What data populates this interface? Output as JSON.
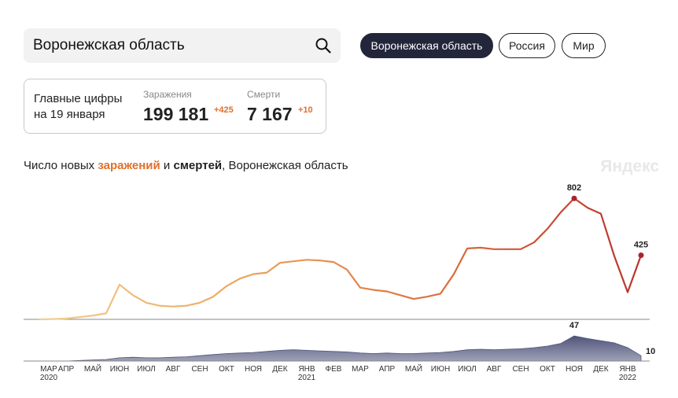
{
  "search": {
    "query": "Воронежская область"
  },
  "tabs": [
    "Воронежская область",
    "Россия",
    "Мир"
  ],
  "summary": {
    "heading": [
      "Главные цифры",
      "на 19 января"
    ],
    "cases": {
      "label": "Заражения",
      "total": "199 181",
      "delta": "+425"
    },
    "deaths": {
      "label": "Смерти",
      "total": "7 167",
      "delta": "+10"
    }
  },
  "chart_title": [
    "Число новых",
    "заражений",
    "и",
    "смертей",
    ", Воронежская область"
  ],
  "watermark": "Яндекс",
  "chart_data": [
    {
      "type": "line",
      "name": "заражения",
      "categories": [
        "МАР",
        null,
        "АПР",
        null,
        "МАЙ",
        null,
        "ИЮН",
        null,
        "ИЮЛ",
        null,
        "АВГ",
        null,
        "СЕН",
        null,
        "ОКТ",
        null,
        "НОЯ",
        null,
        "ДЕК",
        null,
        "ЯНВ",
        null,
        "ФЕВ",
        null,
        "МАР",
        null,
        "АПР",
        null,
        "МАЙ",
        null,
        "ИЮН",
        null,
        "ИЮЛ",
        null,
        "АВГ",
        null,
        "СЕН",
        null,
        "ОКТ",
        null,
        "НОЯ",
        null,
        "ДЕК",
        null,
        "ЯНВ",
        null
      ],
      "years": [
        "2020",
        null,
        null,
        null,
        null,
        null,
        null,
        null,
        null,
        null,
        null,
        null,
        null,
        null,
        null,
        null,
        null,
        null,
        null,
        null,
        "2021",
        null,
        null,
        null,
        null,
        null,
        null,
        null,
        null,
        null,
        null,
        null,
        null,
        null,
        null,
        null,
        null,
        null,
        null,
        null,
        null,
        null,
        null,
        null,
        "2022",
        null
      ],
      "values": [
        0,
        2,
        5,
        15,
        25,
        40,
        230,
        160,
        110,
        90,
        85,
        90,
        110,
        150,
        220,
        270,
        300,
        310,
        375,
        385,
        395,
        390,
        380,
        330,
        210,
        195,
        185,
        160,
        135,
        150,
        170,
        300,
        470,
        475,
        465,
        465,
        465,
        510,
        600,
        710,
        802,
        740,
        700,
        420,
        180,
        425
      ],
      "ylim": [
        0,
        850
      ],
      "colors": [
        "#f2cf93",
        "#eaa75e",
        "#dc6f3e",
        "#b8332c"
      ],
      "marker_color": "#a8242c"
    },
    {
      "type": "area",
      "name": "смерти",
      "values": [
        0,
        0,
        0,
        1,
        2,
        3,
        6,
        7,
        6,
        6,
        7,
        8,
        10,
        12,
        14,
        15,
        16,
        18,
        20,
        21,
        20,
        19,
        18,
        17,
        15,
        14,
        15,
        14,
        14,
        15,
        16,
        18,
        21,
        22,
        21,
        22,
        23,
        25,
        28,
        33,
        47,
        42,
        38,
        34,
        25,
        10
      ],
      "ylim": [
        0,
        50
      ],
      "color": "#50547a"
    }
  ]
}
